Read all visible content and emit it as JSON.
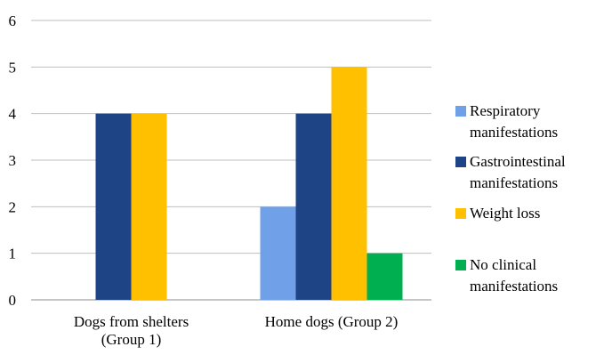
{
  "chart_data": {
    "type": "bar",
    "categories": [
      "Dogs from shelters (Group 1)",
      "Home dogs (Group 2)"
    ],
    "category_lines": [
      [
        "Dogs from shelters",
        "(Group 1)"
      ],
      [
        "Home dogs (Group 2)"
      ]
    ],
    "series": [
      {
        "name": "Respiratory manifestations",
        "legend_lines": [
          "Respiratory",
          "manifestations"
        ],
        "color": "#6fa0e8",
        "values": [
          0,
          2
        ]
      },
      {
        "name": "Gastrointestinal manifestations",
        "legend_lines": [
          "Gastrointestinal",
          "manifestations"
        ],
        "color": "#1f4486",
        "values": [
          4,
          4
        ]
      },
      {
        "name": "Weight loss",
        "legend_lines": [
          "Weight loss"
        ],
        "color": "#ffc000",
        "values": [
          4,
          5
        ]
      },
      {
        "name": "No clinical manifestations",
        "legend_lines": [
          "No clinical",
          "manifestations"
        ],
        "color": "#00b050",
        "values": [
          0,
          1
        ]
      }
    ],
    "yticks": [
      "0",
      "1",
      "2",
      "3",
      "4",
      "5",
      "6"
    ],
    "ylim": [
      0,
      6
    ],
    "grid": true,
    "legend": "right",
    "title": "",
    "xlabel": "",
    "ylabel": ""
  }
}
